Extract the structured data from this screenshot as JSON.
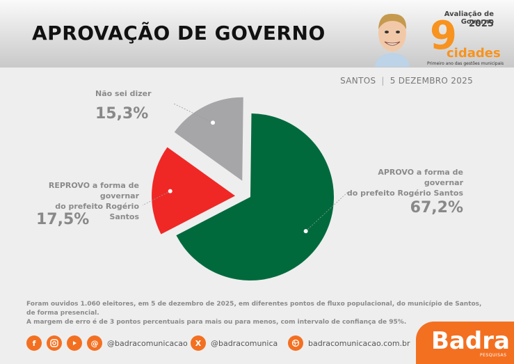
{
  "header": {
    "title": "APROVAÇÃO DE GOVERNO",
    "eval_title": "Avaliação de Governo",
    "eval_year": "2025",
    "logo_number": "9",
    "logo_word": "cidades",
    "logo_tagline": "Primeiro ano das gestões municipais"
  },
  "place": "SANTOS",
  "date": "5 DEZEMBRO 2025",
  "chart_data": {
    "type": "pie",
    "slices": [
      {
        "label": "APROVO a forma de governar do prefeito Rogério Santos",
        "value": 67.2,
        "display": "67,2%",
        "color": "#006a3c"
      },
      {
        "label": "REPROVO a forma de governar do prefeito Rogério Santos",
        "value": 17.5,
        "display": "17,5%",
        "color": "#ef2826"
      },
      {
        "label": "Não sei dizer",
        "value": 15.3,
        "display": "15,3%",
        "color": "#a6a6a8"
      }
    ]
  },
  "labels": {
    "naosei": "Não sei dizer",
    "reprovo_line1": "REPROVO a forma de governar",
    "reprovo_line2": "do prefeito Rogério Santos",
    "aprovo_line1": "APROVO a forma de governar",
    "aprovo_line2": "do prefeito Rogério Santos"
  },
  "note": {
    "line1": "Foram ouvidos 1.060 eleitores, em 5 de dezembro de 2025, em diferentes pontos de fluxo populacional, do município de Santos, de forma presencial.",
    "line2": "A margem de erro é de 3 pontos percentuais para mais ou para menos, com intervalo de confiança de 95%."
  },
  "footer": {
    "social_handle": "@badracomunicacao",
    "x_handle": "@badracomunica",
    "website": "badracomunicacao.com.br",
    "brand": "Badra",
    "brand_sub": "PESQUISAS"
  },
  "colors": {
    "accent": "#f37021",
    "approve": "#006a3c",
    "reprove": "#ef2826",
    "unsure": "#a6a6a8"
  },
  "icons": [
    "facebook-icon",
    "instagram-icon",
    "youtube-icon",
    "threads-icon",
    "x-icon",
    "web-icon"
  ]
}
